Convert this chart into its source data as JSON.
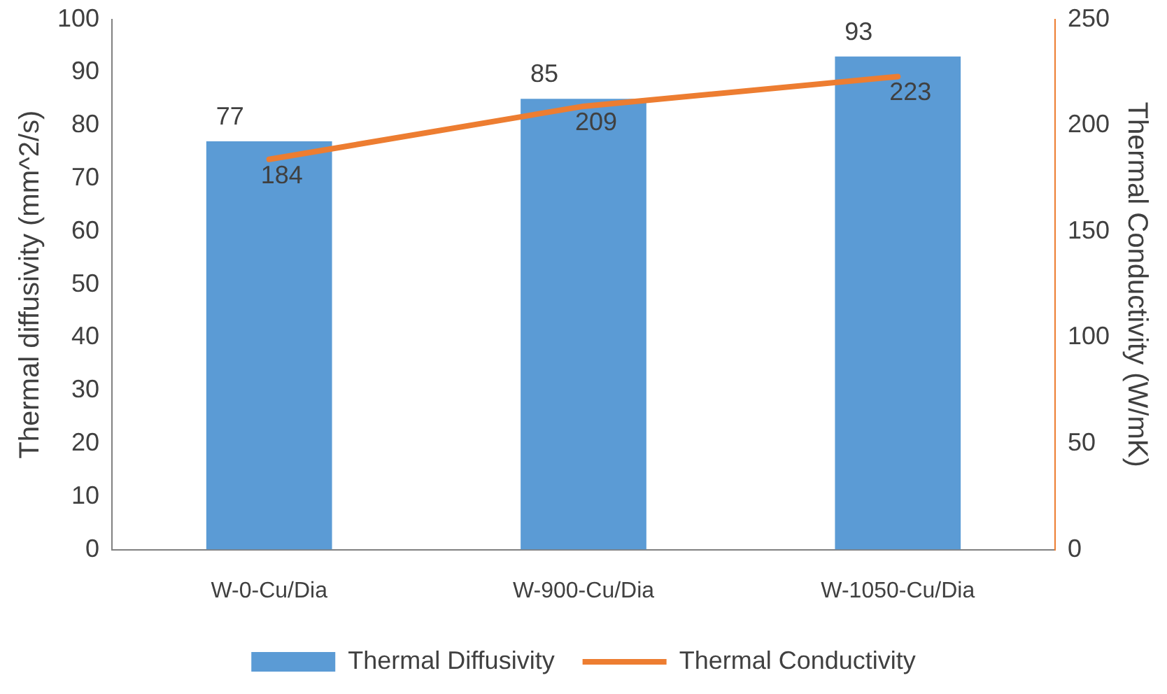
{
  "chart_data": {
    "type": "bar",
    "categories": [
      "W-0-Cu/Dia",
      "W-900-Cu/Dia",
      "W-1050-Cu/Dia"
    ],
    "series": [
      {
        "name": "Thermal Diffusivity",
        "color": "#5b9bd5",
        "values": [
          77,
          85,
          93
        ]
      },
      {
        "name": "Thermal Conductivity",
        "color": "#ed7d31",
        "values": [
          184,
          209,
          223
        ],
        "type": "line",
        "axis": "y2"
      }
    ],
    "ylabel": "Thermal diffusivity (mm^2/s)",
    "y2label": "Thermal Conductivity (W/mK)",
    "ylim": [
      0,
      100
    ],
    "yticks": [
      0,
      10,
      20,
      30,
      40,
      50,
      60,
      70,
      80,
      90,
      100
    ],
    "y2lim": [
      0,
      250
    ],
    "y2ticks": [
      0,
      50,
      100,
      150,
      200,
      250
    ],
    "data_labels": true,
    "legend": "bottom"
  }
}
